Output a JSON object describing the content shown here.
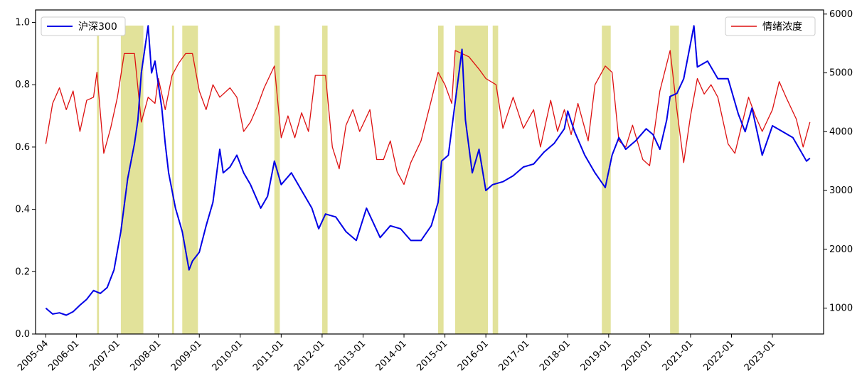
{
  "chart_data": {
    "type": "line",
    "grid": false,
    "highlight_color": "#d8d878",
    "x_ticks": [
      "2005-04",
      "2006-01",
      "2007-01",
      "2008-01",
      "2009-01",
      "2010-01",
      "2011-01",
      "2012-01",
      "2013-01",
      "2014-01",
      "2015-01",
      "2016-01",
      "2017-01",
      "2018-01",
      "2019-01",
      "2020-01",
      "2021-01",
      "2022-01",
      "2023-01"
    ],
    "xlim": [
      "2005-01",
      "2024-04"
    ],
    "left_axis": {
      "ylim": [
        0,
        1.04
      ],
      "ticks": [
        "0.0",
        "0.2",
        "0.4",
        "0.6",
        "0.8",
        "1.0"
      ]
    },
    "right_axis": {
      "ylim": [
        560,
        6070
      ],
      "ticks": [
        "1000",
        "2000",
        "3000",
        "4000",
        "5000",
        "6000"
      ]
    },
    "series": [
      {
        "name": "沪深300",
        "axis": "right",
        "color": "#0000e6",
        "legend_position": "top-left",
        "points": [
          [
            "2005-04",
            1000
          ],
          [
            "2005-06",
            900
          ],
          [
            "2005-08",
            920
          ],
          [
            "2005-10",
            880
          ],
          [
            "2005-12",
            940
          ],
          [
            "2006-02",
            1050
          ],
          [
            "2006-04",
            1150
          ],
          [
            "2006-06",
            1300
          ],
          [
            "2006-08",
            1250
          ],
          [
            "2006-10",
            1350
          ],
          [
            "2006-12",
            1650
          ],
          [
            "2007-02",
            2300
          ],
          [
            "2007-04",
            3200
          ],
          [
            "2007-06",
            3800
          ],
          [
            "2007-07",
            4200
          ],
          [
            "2007-08",
            5000
          ],
          [
            "2007-10",
            5800
          ],
          [
            "2007-11",
            5000
          ],
          [
            "2007-12",
            5200
          ],
          [
            "2008-01",
            4800
          ],
          [
            "2008-02",
            4400
          ],
          [
            "2008-03",
            3800
          ],
          [
            "2008-04",
            3300
          ],
          [
            "2008-06",
            2700
          ],
          [
            "2008-08",
            2300
          ],
          [
            "2008-10",
            1650
          ],
          [
            "2008-11",
            1800
          ],
          [
            "2009-01",
            1950
          ],
          [
            "2009-03",
            2400
          ],
          [
            "2009-05",
            2800
          ],
          [
            "2009-07",
            3700
          ],
          [
            "2009-08",
            3300
          ],
          [
            "2009-10",
            3400
          ],
          [
            "2009-12",
            3600
          ],
          [
            "2010-02",
            3300
          ],
          [
            "2010-04",
            3100
          ],
          [
            "2010-07",
            2700
          ],
          [
            "2010-09",
            2900
          ],
          [
            "2010-11",
            3500
          ],
          [
            "2011-01",
            3100
          ],
          [
            "2011-04",
            3300
          ],
          [
            "2011-07",
            3000
          ],
          [
            "2011-10",
            2700
          ],
          [
            "2011-12",
            2350
          ],
          [
            "2012-02",
            2600
          ],
          [
            "2012-05",
            2550
          ],
          [
            "2012-08",
            2300
          ],
          [
            "2012-11",
            2150
          ],
          [
            "2013-02",
            2700
          ],
          [
            "2013-04",
            2450
          ],
          [
            "2013-06",
            2200
          ],
          [
            "2013-09",
            2400
          ],
          [
            "2013-12",
            2350
          ],
          [
            "2014-03",
            2150
          ],
          [
            "2014-06",
            2150
          ],
          [
            "2014-09",
            2400
          ],
          [
            "2014-11",
            2800
          ],
          [
            "2014-12",
            3500
          ],
          [
            "2015-02",
            3600
          ],
          [
            "2015-04",
            4500
          ],
          [
            "2015-06",
            5400
          ],
          [
            "2015-07",
            4200
          ],
          [
            "2015-09",
            3300
          ],
          [
            "2015-11",
            3700
          ],
          [
            "2016-01",
            3000
          ],
          [
            "2016-03",
            3100
          ],
          [
            "2016-06",
            3150
          ],
          [
            "2016-09",
            3250
          ],
          [
            "2016-12",
            3400
          ],
          [
            "2017-03",
            3450
          ],
          [
            "2017-06",
            3650
          ],
          [
            "2017-09",
            3800
          ],
          [
            "2017-12",
            4050
          ],
          [
            "2018-01",
            4350
          ],
          [
            "2018-03",
            4000
          ],
          [
            "2018-06",
            3600
          ],
          [
            "2018-09",
            3300
          ],
          [
            "2018-12",
            3050
          ],
          [
            "2019-02",
            3600
          ],
          [
            "2019-04",
            3900
          ],
          [
            "2019-06",
            3700
          ],
          [
            "2019-09",
            3850
          ],
          [
            "2019-12",
            4050
          ],
          [
            "2020-02",
            3950
          ],
          [
            "2020-04",
            3700
          ],
          [
            "2020-06",
            4200
          ],
          [
            "2020-07",
            4600
          ],
          [
            "2020-09",
            4650
          ],
          [
            "2020-11",
            4900
          ],
          [
            "2021-01",
            5500
          ],
          [
            "2021-02",
            5800
          ],
          [
            "2021-03",
            5100
          ],
          [
            "2021-06",
            5200
          ],
          [
            "2021-09",
            4900
          ],
          [
            "2021-12",
            4900
          ],
          [
            "2022-03",
            4300
          ],
          [
            "2022-05",
            4000
          ],
          [
            "2022-07",
            4400
          ],
          [
            "2022-10",
            3600
          ],
          [
            "2023-01",
            4100
          ],
          [
            "2023-04",
            4000
          ],
          [
            "2023-07",
            3900
          ],
          [
            "2023-09",
            3700
          ],
          [
            "2023-11",
            3500
          ],
          [
            "2023-12",
            3550
          ]
        ]
      },
      {
        "name": "情绪浓度",
        "axis": "left",
        "color": "#dd1111",
        "legend_position": "top-right",
        "points": [
          [
            "2005-04",
            0.61
          ],
          [
            "2005-06",
            0.74
          ],
          [
            "2005-08",
            0.79
          ],
          [
            "2005-10",
            0.72
          ],
          [
            "2005-12",
            0.78
          ],
          [
            "2006-02",
            0.65
          ],
          [
            "2006-04",
            0.75
          ],
          [
            "2006-06",
            0.76
          ],
          [
            "2006-07",
            0.84
          ],
          [
            "2006-09",
            0.58
          ],
          [
            "2006-11",
            0.66
          ],
          [
            "2007-01",
            0.76
          ],
          [
            "2007-03",
            0.9
          ],
          [
            "2007-06",
            0.9
          ],
          [
            "2007-08",
            0.68
          ],
          [
            "2007-10",
            0.76
          ],
          [
            "2007-12",
            0.74
          ],
          [
            "2008-01",
            0.82
          ],
          [
            "2008-03",
            0.72
          ],
          [
            "2008-05",
            0.83
          ],
          [
            "2008-07",
            0.87
          ],
          [
            "2008-09",
            0.9
          ],
          [
            "2008-11",
            0.9
          ],
          [
            "2009-01",
            0.78
          ],
          [
            "2009-03",
            0.72
          ],
          [
            "2009-05",
            0.8
          ],
          [
            "2009-07",
            0.76
          ],
          [
            "2009-10",
            0.79
          ],
          [
            "2009-12",
            0.76
          ],
          [
            "2010-02",
            0.65
          ],
          [
            "2010-04",
            0.68
          ],
          [
            "2010-06",
            0.73
          ],
          [
            "2010-08",
            0.79
          ],
          [
            "2010-11",
            0.86
          ],
          [
            "2011-01",
            0.63
          ],
          [
            "2011-03",
            0.7
          ],
          [
            "2011-05",
            0.63
          ],
          [
            "2011-07",
            0.71
          ],
          [
            "2011-09",
            0.65
          ],
          [
            "2011-11",
            0.83
          ],
          [
            "2012-02",
            0.83
          ],
          [
            "2012-04",
            0.6
          ],
          [
            "2012-06",
            0.53
          ],
          [
            "2012-08",
            0.67
          ],
          [
            "2012-10",
            0.72
          ],
          [
            "2012-12",
            0.65
          ],
          [
            "2013-03",
            0.72
          ],
          [
            "2013-05",
            0.56
          ],
          [
            "2013-07",
            0.56
          ],
          [
            "2013-09",
            0.62
          ],
          [
            "2013-11",
            0.52
          ],
          [
            "2014-01",
            0.48
          ],
          [
            "2014-03",
            0.55
          ],
          [
            "2014-06",
            0.62
          ],
          [
            "2014-09",
            0.75
          ],
          [
            "2014-11",
            0.84
          ],
          [
            "2015-01",
            0.8
          ],
          [
            "2015-03",
            0.74
          ],
          [
            "2015-04",
            0.91
          ],
          [
            "2015-08",
            0.89
          ],
          [
            "2015-11",
            0.85
          ],
          [
            "2016-01",
            0.82
          ],
          [
            "2016-04",
            0.8
          ],
          [
            "2016-06",
            0.66
          ],
          [
            "2016-09",
            0.76
          ],
          [
            "2016-12",
            0.66
          ],
          [
            "2017-03",
            0.72
          ],
          [
            "2017-05",
            0.6
          ],
          [
            "2017-08",
            0.75
          ],
          [
            "2017-10",
            0.65
          ],
          [
            "2017-12",
            0.72
          ],
          [
            "2018-02",
            0.64
          ],
          [
            "2018-04",
            0.74
          ],
          [
            "2018-07",
            0.62
          ],
          [
            "2018-09",
            0.8
          ],
          [
            "2018-12",
            0.86
          ],
          [
            "2019-02",
            0.84
          ],
          [
            "2019-04",
            0.62
          ],
          [
            "2019-06",
            0.6
          ],
          [
            "2019-08",
            0.67
          ],
          [
            "2019-11",
            0.56
          ],
          [
            "2020-01",
            0.54
          ],
          [
            "2020-04",
            0.78
          ],
          [
            "2020-07",
            0.91
          ],
          [
            "2020-09",
            0.72
          ],
          [
            "2020-11",
            0.55
          ],
          [
            "2021-01",
            0.7
          ],
          [
            "2021-03",
            0.82
          ],
          [
            "2021-05",
            0.77
          ],
          [
            "2021-07",
            0.8
          ],
          [
            "2021-09",
            0.76
          ],
          [
            "2021-12",
            0.61
          ],
          [
            "2022-02",
            0.58
          ],
          [
            "2022-04",
            0.67
          ],
          [
            "2022-06",
            0.76
          ],
          [
            "2022-08",
            0.7
          ],
          [
            "2022-10",
            0.65
          ],
          [
            "2023-01",
            0.72
          ],
          [
            "2023-03",
            0.81
          ],
          [
            "2023-05",
            0.76
          ],
          [
            "2023-08",
            0.69
          ],
          [
            "2023-10",
            0.6
          ],
          [
            "2023-12",
            0.68
          ]
        ]
      }
    ],
    "highlight_bands": [
      [
        "2006-07",
        "2006-07"
      ],
      [
        "2007-02",
        "2007-08"
      ],
      [
        "2008-05",
        "2008-05"
      ],
      [
        "2008-08",
        "2008-12"
      ],
      [
        "2010-11",
        "2010-12"
      ],
      [
        "2012-01",
        "2012-02"
      ],
      [
        "2014-11",
        "2014-12"
      ],
      [
        "2015-04",
        "2016-01"
      ],
      [
        "2016-03",
        "2016-04"
      ],
      [
        "2018-11",
        "2019-01"
      ],
      [
        "2020-07",
        "2020-09"
      ]
    ]
  }
}
